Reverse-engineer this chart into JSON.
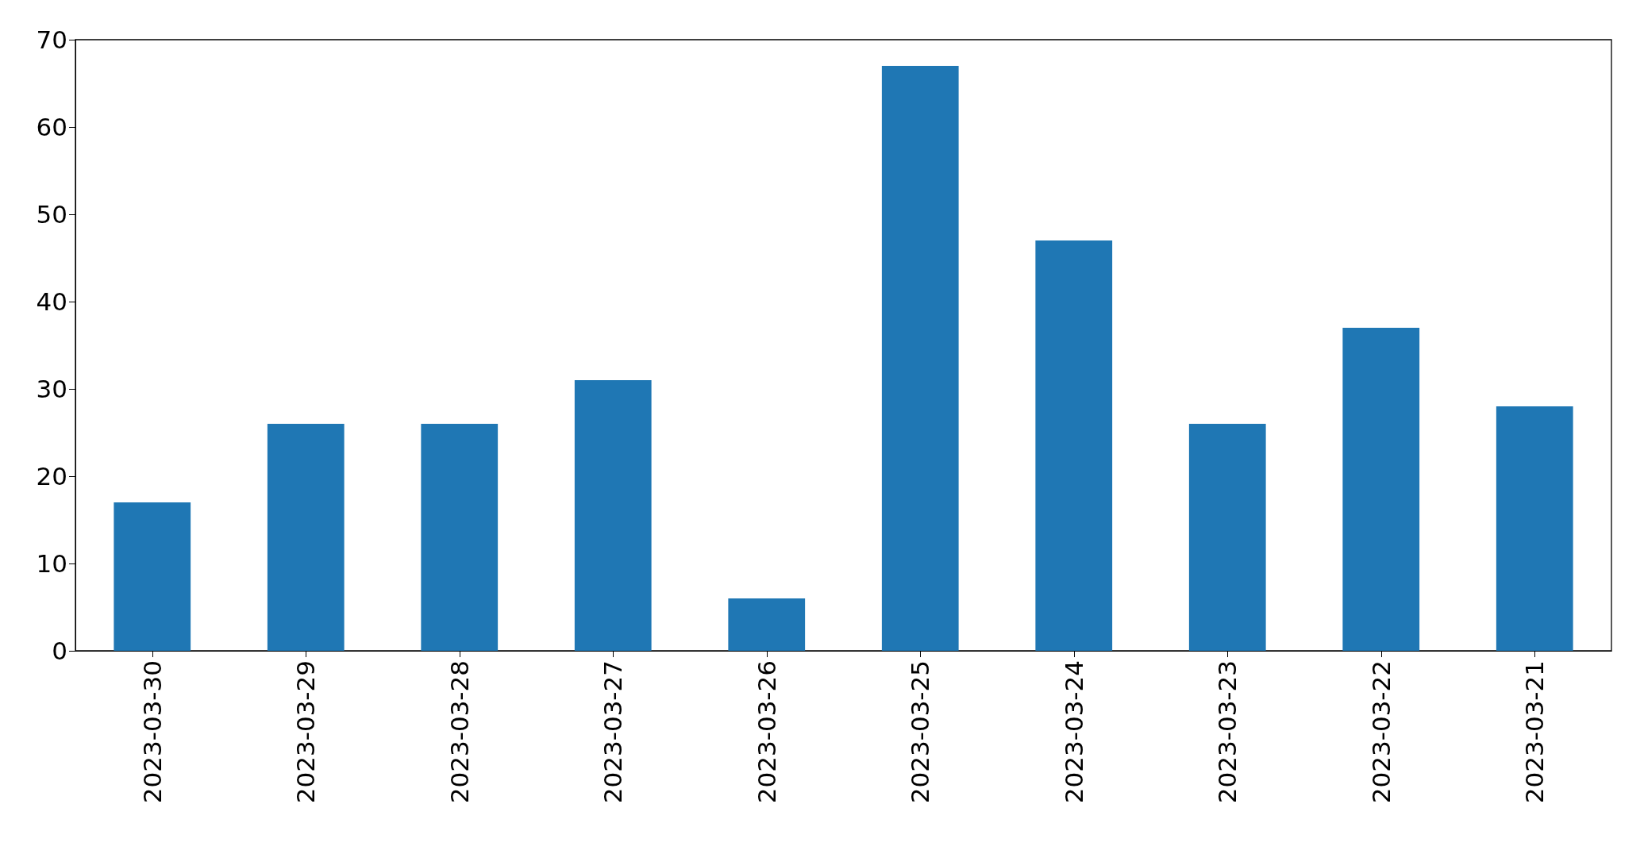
{
  "chart_data": {
    "type": "bar",
    "categories": [
      "2023-03-30",
      "2023-03-29",
      "2023-03-28",
      "2023-03-27",
      "2023-03-26",
      "2023-03-25",
      "2023-03-24",
      "2023-03-23",
      "2023-03-22",
      "2023-03-21"
    ],
    "values": [
      17,
      26,
      26,
      31,
      6,
      67,
      47,
      26,
      37,
      28
    ],
    "color": "#1f77b4",
    "ylim": [
      0,
      70
    ],
    "yticks": [
      0,
      10,
      20,
      30,
      40,
      50,
      60,
      70
    ],
    "grid": false
  }
}
